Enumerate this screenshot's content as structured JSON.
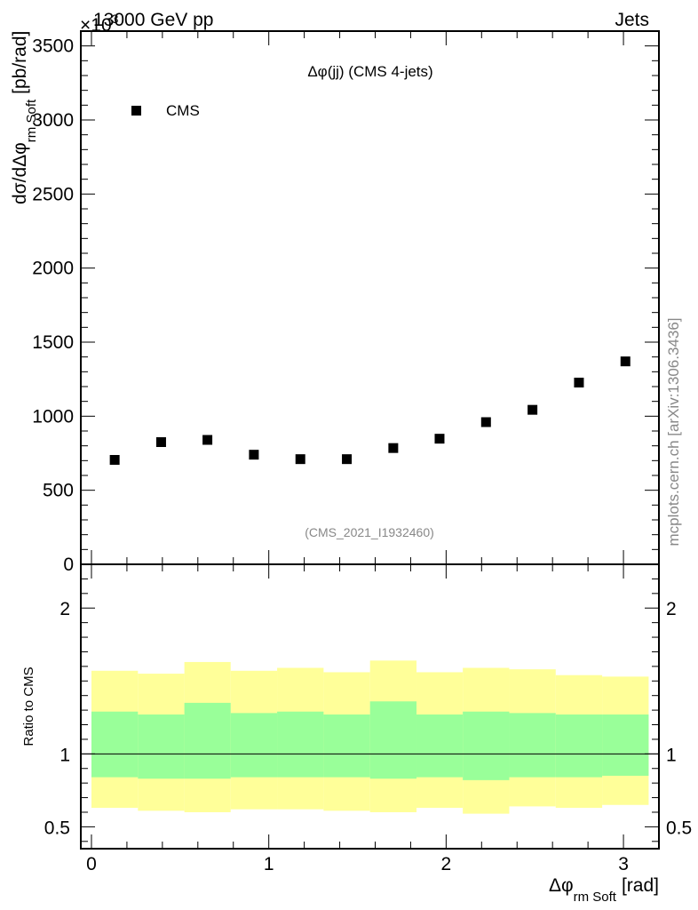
{
  "header": {
    "energy_label": "13000 GeV pp",
    "category_label": "Jets",
    "exponent_label": "×10",
    "exponent_power": "3"
  },
  "side_label": "mcplots.cern.ch [arXiv:1306.3436]",
  "colors": {
    "marker": "#000000",
    "band_outer": "#ffff99",
    "band_inner": "#99ff99",
    "axis": "#000000",
    "reference_text": "#888888"
  },
  "chart_data": [
    {
      "type": "scatter",
      "title": "Δφ(jj) (CMS 4-jets)",
      "reference": "(CMS_2021_I1932460)",
      "ylabel_main": "dσ/dΔφ",
      "ylabel_sub": "rm Soft",
      "ylabel_unit": "[pb/rad]",
      "ylim": [
        0,
        3600
      ],
      "xlim": [
        -0.06,
        3.2
      ],
      "y_ticks": [
        0,
        500,
        1000,
        1500,
        2000,
        2500,
        3000,
        3500
      ],
      "y_tick_labels": [
        "0",
        "500",
        "1000",
        "1500",
        "2000",
        "2500",
        "3000",
        "3500"
      ],
      "legend": {
        "placement": "top-left",
        "entries": [
          "CMS"
        ]
      },
      "series": [
        {
          "name": "CMS",
          "x": [
            0.131,
            0.393,
            0.654,
            0.916,
            1.178,
            1.44,
            1.702,
            1.963,
            2.225,
            2.487,
            2.749,
            3.011
          ],
          "values": [
            705,
            825,
            840,
            740,
            710,
            710,
            785,
            848,
            960,
            1043,
            1227,
            1370
          ]
        }
      ]
    },
    {
      "type": "area",
      "ylabel": "Ratio to CMS",
      "xlabel_main": "Δφ",
      "xlabel_sub": "rm Soft",
      "xlabel_unit": "[rad]",
      "ylim": [
        0.35,
        2.3
      ],
      "xlim": [
        -0.06,
        3.2
      ],
      "x_ticks": [
        0,
        1,
        2,
        3
      ],
      "x_tick_labels": [
        "0",
        "1",
        "2",
        "3"
      ],
      "y_ticks": [
        0.5,
        1,
        2
      ],
      "y_tick_labels": [
        "0.5",
        "1",
        "2"
      ],
      "reference_line": 1,
      "bin_edges": [
        0,
        0.262,
        0.524,
        0.785,
        1.047,
        1.309,
        1.571,
        1.833,
        2.094,
        2.356,
        2.618,
        2.88,
        3.142
      ],
      "outer_band": {
        "upper": [
          1.57,
          1.55,
          1.63,
          1.57,
          1.59,
          1.56,
          1.64,
          1.56,
          1.59,
          1.58,
          1.54,
          1.53
        ],
        "lower": [
          0.63,
          0.61,
          0.6,
          0.62,
          0.62,
          0.61,
          0.6,
          0.63,
          0.59,
          0.64,
          0.63,
          0.65
        ]
      },
      "inner_band": {
        "upper": [
          1.29,
          1.27,
          1.35,
          1.28,
          1.29,
          1.27,
          1.36,
          1.27,
          1.29,
          1.28,
          1.27,
          1.27
        ],
        "lower": [
          0.84,
          0.83,
          0.83,
          0.84,
          0.84,
          0.84,
          0.83,
          0.84,
          0.82,
          0.84,
          0.84,
          0.85
        ]
      }
    }
  ]
}
